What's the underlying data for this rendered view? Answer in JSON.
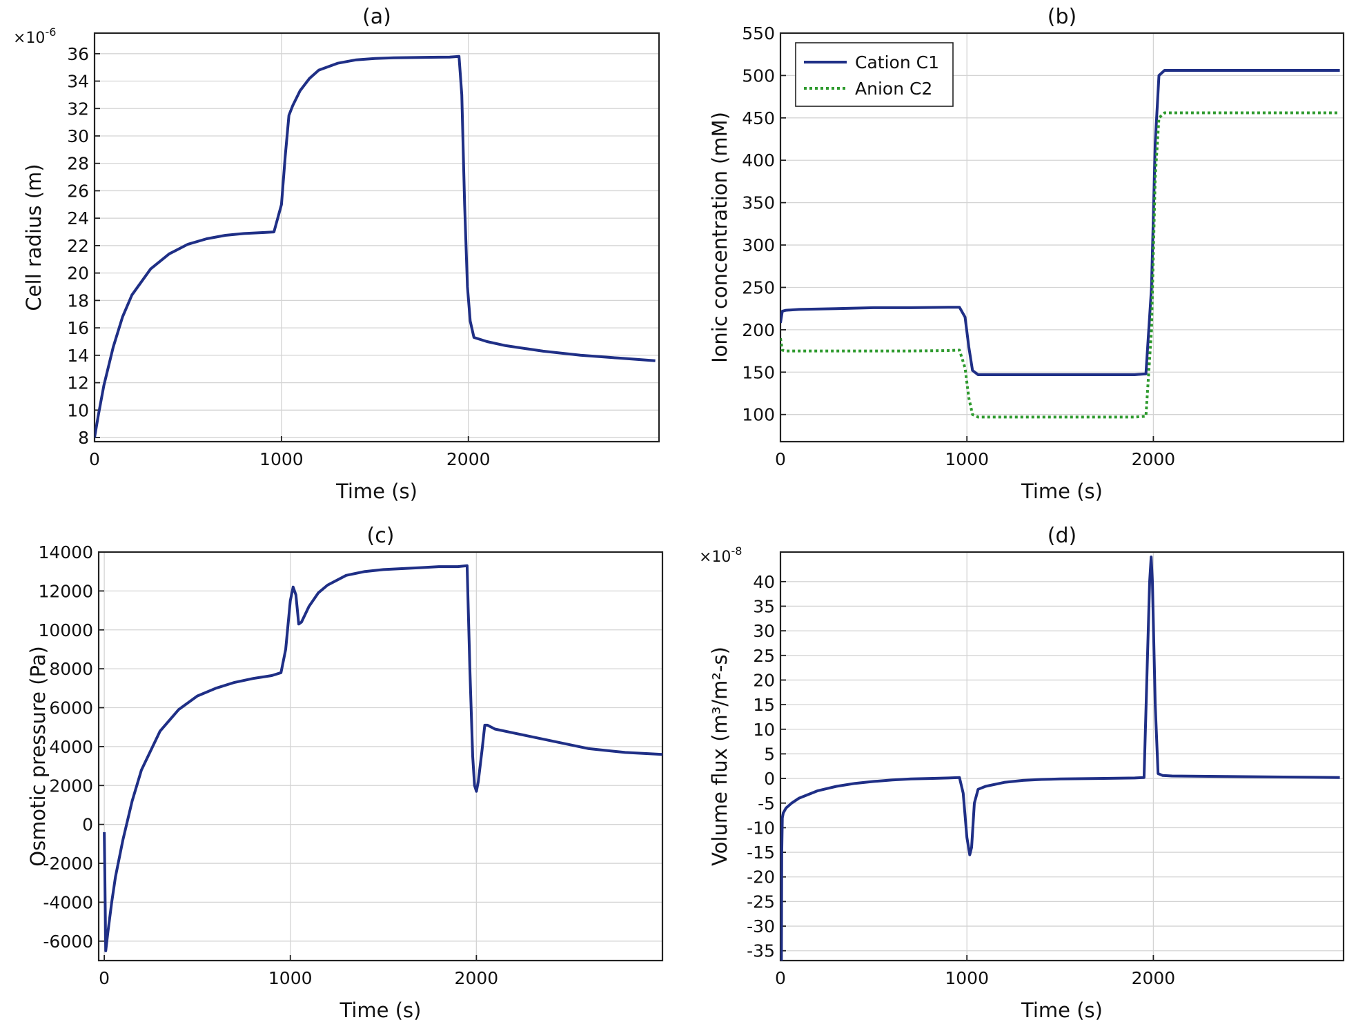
{
  "chart_data": [
    {
      "type": "line",
      "title": "(a)",
      "xlabel": "Time (s)",
      "ylabel": "Cell radius (m)",
      "scale_label": "×10",
      "scale_exp": "-6",
      "xlim": [
        0,
        3020
      ],
      "ylim": [
        7.7,
        37.5
      ],
      "xticks": [
        0,
        1000,
        2000
      ],
      "yticks": [
        8,
        10,
        12,
        14,
        16,
        18,
        20,
        22,
        24,
        26,
        28,
        30,
        32,
        34,
        36
      ],
      "series": [
        {
          "name": "Cell radius",
          "color": "#1f2f86",
          "dash": "",
          "x": [
            0,
            20,
            50,
            100,
            150,
            200,
            300,
            400,
            500,
            600,
            700,
            800,
            900,
            960,
            1000,
            1020,
            1040,
            1060,
            1100,
            1150,
            1200,
            1300,
            1400,
            1500,
            1600,
            1700,
            1800,
            1900,
            1950,
            1965,
            1980,
            1995,
            2010,
            2030,
            2100,
            2200,
            2400,
            2600,
            2800,
            3000
          ],
          "y": [
            8.0,
            9.6,
            11.8,
            14.6,
            16.8,
            18.4,
            20.3,
            21.4,
            22.1,
            22.5,
            22.75,
            22.88,
            22.95,
            23.0,
            25.0,
            28.5,
            31.5,
            32.2,
            33.3,
            34.2,
            34.8,
            35.3,
            35.55,
            35.65,
            35.7,
            35.72,
            35.74,
            35.75,
            35.8,
            33.0,
            25.0,
            19.0,
            16.5,
            15.3,
            15.0,
            14.7,
            14.3,
            14.0,
            13.8,
            13.6
          ]
        }
      ]
    },
    {
      "type": "line",
      "title": "(b)",
      "xlabel": "Time (s)",
      "ylabel": "Ionic concentration (mM)",
      "xlim": [
        0,
        3020
      ],
      "ylim": [
        68,
        550
      ],
      "xticks": [
        0,
        1000,
        2000
      ],
      "yticks": [
        100,
        150,
        200,
        250,
        300,
        350,
        400,
        450,
        500,
        550
      ],
      "legend_position": "top-left",
      "series": [
        {
          "name": "Cation C1",
          "color": "#1f2f86",
          "dash": "",
          "x": [
            0,
            10,
            30,
            100,
            300,
            500,
            700,
            900,
            960,
            990,
            1010,
            1030,
            1060,
            1100,
            1500,
            1900,
            1960,
            1990,
            2010,
            2030,
            2060,
            2100,
            2500,
            3000
          ],
          "y": [
            208,
            222,
            223,
            224,
            225,
            226,
            226,
            226.5,
            226.5,
            215,
            180,
            152,
            147,
            147,
            147,
            147,
            148,
            250,
            420,
            500,
            506,
            506,
            506,
            506
          ]
        },
        {
          "name": "Anion C2",
          "color": "#2e9a2e",
          "dash": "4 4",
          "x": [
            0,
            10,
            30,
            100,
            300,
            500,
            700,
            900,
            960,
            990,
            1010,
            1030,
            1060,
            1100,
            1500,
            1900,
            1960,
            1990,
            2010,
            2030,
            2060,
            2100,
            2500,
            3000
          ],
          "y": [
            190,
            176,
            175,
            175,
            175,
            175,
            175,
            175.5,
            176,
            155,
            120,
            100,
            97,
            97,
            97,
            97,
            98,
            200,
            380,
            450,
            456,
            456,
            456,
            456
          ]
        }
      ]
    },
    {
      "type": "line",
      "title": "(c)",
      "xlabel": "Time (s)",
      "ylabel": "Osmotic pressure (Pa)",
      "xlim": [
        -30,
        3000
      ],
      "ylim": [
        -7000,
        14000
      ],
      "xticks": [
        0,
        1000,
        2000
      ],
      "yticks": [
        -6000,
        -4000,
        -2000,
        0,
        2000,
        4000,
        6000,
        8000,
        10000,
        12000,
        14000
      ],
      "series": [
        {
          "name": "Osmotic pressure",
          "color": "#1f2f86",
          "dash": "",
          "x": [
            0,
            3,
            8,
            20,
            40,
            60,
            100,
            150,
            200,
            300,
            400,
            500,
            600,
            700,
            800,
            900,
            950,
            975,
            1000,
            1015,
            1030,
            1045,
            1060,
            1100,
            1150,
            1200,
            1300,
            1400,
            1500,
            1600,
            1700,
            1800,
            1900,
            1950,
            1965,
            1980,
            1990,
            2000,
            2010,
            2030,
            2045,
            2060,
            2100,
            2200,
            2400,
            2600,
            2800,
            3000
          ],
          "y": [
            -400,
            -2500,
            -6500,
            -5500,
            -4000,
            -2700,
            -800,
            1200,
            2800,
            4800,
            5900,
            6600,
            7000,
            7300,
            7500,
            7650,
            7800,
            9000,
            11500,
            12200,
            11800,
            10300,
            10400,
            11200,
            11900,
            12300,
            12800,
            13000,
            13100,
            13150,
            13200,
            13250,
            13250,
            13300,
            8000,
            3500,
            2000,
            1700,
            2200,
            3800,
            5100,
            5100,
            4900,
            4700,
            4300,
            3900,
            3700,
            3600
          ]
        }
      ]
    },
    {
      "type": "line",
      "title": "(d)",
      "xlabel": "Time (s)",
      "ylabel": "Volume flux (m³/m²-s)",
      "scale_label": "×10",
      "scale_exp": "-8",
      "xlim": [
        0,
        3020
      ],
      "ylim": [
        -37,
        46
      ],
      "xticks": [
        0,
        1000,
        2000
      ],
      "yticks": [
        -35,
        -30,
        -25,
        -20,
        -15,
        -10,
        -5,
        0,
        5,
        10,
        15,
        20,
        25,
        30,
        35,
        40
      ],
      "series": [
        {
          "name": "Volume flux",
          "color": "#1f2f86",
          "dash": "",
          "x": [
            5,
            7,
            10,
            15,
            30,
            60,
            100,
            200,
            300,
            400,
            500,
            600,
            700,
            800,
            900,
            960,
            980,
            1000,
            1015,
            1025,
            1040,
            1060,
            1100,
            1200,
            1300,
            1400,
            1500,
            1700,
            1900,
            1950,
            1965,
            1980,
            1988,
            1995,
            2010,
            2025,
            2050,
            2100,
            2400,
            2700,
            3000
          ],
          "y": [
            -37,
            -15,
            -8,
            -7,
            -6,
            -5,
            -4,
            -2.5,
            -1.6,
            -1,
            -0.6,
            -0.3,
            -0.1,
            0,
            0.1,
            0.2,
            -3,
            -12,
            -15.5,
            -14,
            -5,
            -2.2,
            -1.6,
            -0.8,
            -0.4,
            -0.2,
            -0.1,
            0,
            0.1,
            0.2,
            20,
            40,
            45,
            40,
            15,
            1,
            0.6,
            0.5,
            0.4,
            0.3,
            0.2
          ]
        }
      ]
    }
  ]
}
